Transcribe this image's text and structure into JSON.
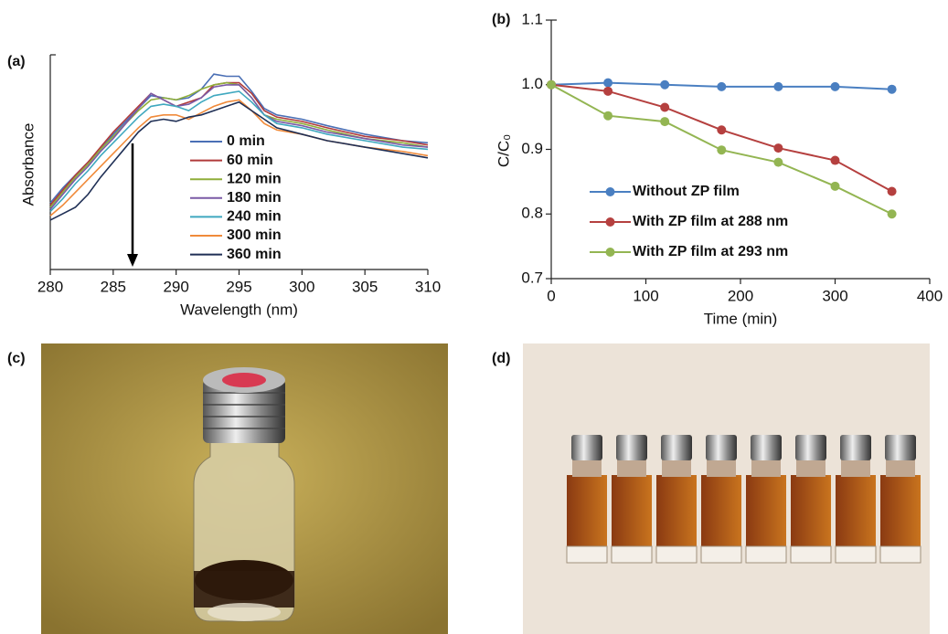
{
  "chart_data": [
    {
      "type": "line",
      "panel_label": "(a)",
      "xlabel": "Wavelength (nm)",
      "ylabel": "Absorbance",
      "x": [
        280,
        281,
        282,
        283,
        284,
        285,
        286,
        287,
        288,
        289,
        290,
        291,
        292,
        293,
        294,
        295,
        296,
        297,
        298,
        300,
        302,
        305,
        308,
        310
      ],
      "xlim": [
        280,
        310
      ],
      "xticks": [
        280,
        285,
        290,
        295,
        300,
        305,
        310
      ],
      "ylim": [
        0,
        1
      ],
      "grid": false,
      "legend": "center",
      "series": [
        {
          "name": "0 min",
          "color": "#4a6fb5",
          "values": [
            0.31,
            0.38,
            0.44,
            0.5,
            0.56,
            0.63,
            0.69,
            0.75,
            0.81,
            0.8,
            0.79,
            0.8,
            0.84,
            0.91,
            0.9,
            0.9,
            0.83,
            0.75,
            0.72,
            0.7,
            0.67,
            0.63,
            0.6,
            0.59
          ]
        },
        {
          "name": "60 min",
          "color": "#b03a3a",
          "values": [
            0.3,
            0.37,
            0.44,
            0.5,
            0.57,
            0.64,
            0.7,
            0.76,
            0.82,
            0.79,
            0.76,
            0.78,
            0.8,
            0.86,
            0.87,
            0.87,
            0.82,
            0.74,
            0.71,
            0.69,
            0.66,
            0.62,
            0.6,
            0.58
          ]
        },
        {
          "name": "120 min",
          "color": "#8fae3a",
          "values": [
            0.29,
            0.36,
            0.43,
            0.49,
            0.56,
            0.62,
            0.68,
            0.74,
            0.79,
            0.8,
            0.79,
            0.81,
            0.84,
            0.86,
            0.87,
            0.86,
            0.8,
            0.72,
            0.7,
            0.68,
            0.65,
            0.61,
            0.59,
            0.57
          ]
        },
        {
          "name": "180 min",
          "color": "#7a5aa6",
          "values": [
            0.28,
            0.35,
            0.42,
            0.48,
            0.55,
            0.61,
            0.68,
            0.75,
            0.82,
            0.79,
            0.76,
            0.77,
            0.8,
            0.85,
            0.86,
            0.86,
            0.8,
            0.72,
            0.69,
            0.67,
            0.64,
            0.61,
            0.58,
            0.57
          ]
        },
        {
          "name": "240 min",
          "color": "#3fa8bf",
          "values": [
            0.27,
            0.33,
            0.4,
            0.46,
            0.53,
            0.59,
            0.65,
            0.71,
            0.76,
            0.77,
            0.76,
            0.74,
            0.78,
            0.81,
            0.82,
            0.83,
            0.78,
            0.72,
            0.68,
            0.66,
            0.63,
            0.6,
            0.57,
            0.56
          ]
        },
        {
          "name": "300 min",
          "color": "#f08a3a",
          "values": [
            0.25,
            0.3,
            0.36,
            0.42,
            0.48,
            0.54,
            0.6,
            0.66,
            0.71,
            0.72,
            0.72,
            0.7,
            0.73,
            0.76,
            0.78,
            0.79,
            0.74,
            0.68,
            0.65,
            0.63,
            0.6,
            0.57,
            0.55,
            0.53
          ]
        },
        {
          "name": "360 min",
          "color": "#1f2f55",
          "values": [
            0.23,
            0.26,
            0.29,
            0.35,
            0.43,
            0.5,
            0.57,
            0.64,
            0.69,
            0.7,
            0.69,
            0.71,
            0.72,
            0.74,
            0.76,
            0.78,
            0.74,
            0.7,
            0.66,
            0.63,
            0.6,
            0.57,
            0.54,
            0.52
          ]
        }
      ]
    },
    {
      "type": "line",
      "panel_label": "(b)",
      "xlabel": "Time (min)",
      "ylabel": "C/C₀",
      "markers": true,
      "x": [
        0,
        60,
        120,
        180,
        240,
        300,
        360
      ],
      "xlim": [
        0,
        400
      ],
      "xticks": [
        0,
        100,
        200,
        300,
        400
      ],
      "ylim": [
        0.7,
        1.1
      ],
      "yticks": [
        0.7,
        0.8,
        0.9,
        {
          "value": 1,
          "label": "1.0"
        },
        1.1
      ],
      "grid": false,
      "legend": "lower left",
      "series": [
        {
          "name": "Without ZP film",
          "color": "#4a7fc1",
          "values": [
            1.0,
            1.003,
            1.0,
            0.997,
            0.997,
            0.997,
            0.993
          ]
        },
        {
          "name": "With ZP film at 288 nm",
          "color": "#b5403f",
          "values": [
            1.0,
            0.99,
            0.965,
            0.93,
            0.902,
            0.883,
            0.835
          ]
        },
        {
          "name": "With ZP film at 293 nm",
          "color": "#93b552",
          "values": [
            1.0,
            0.952,
            0.943,
            0.899,
            0.88,
            0.843,
            0.8
          ]
        }
      ]
    }
  ],
  "photos": [
    {
      "label": "(c)"
    },
    {
      "label": "(d)"
    }
  ]
}
